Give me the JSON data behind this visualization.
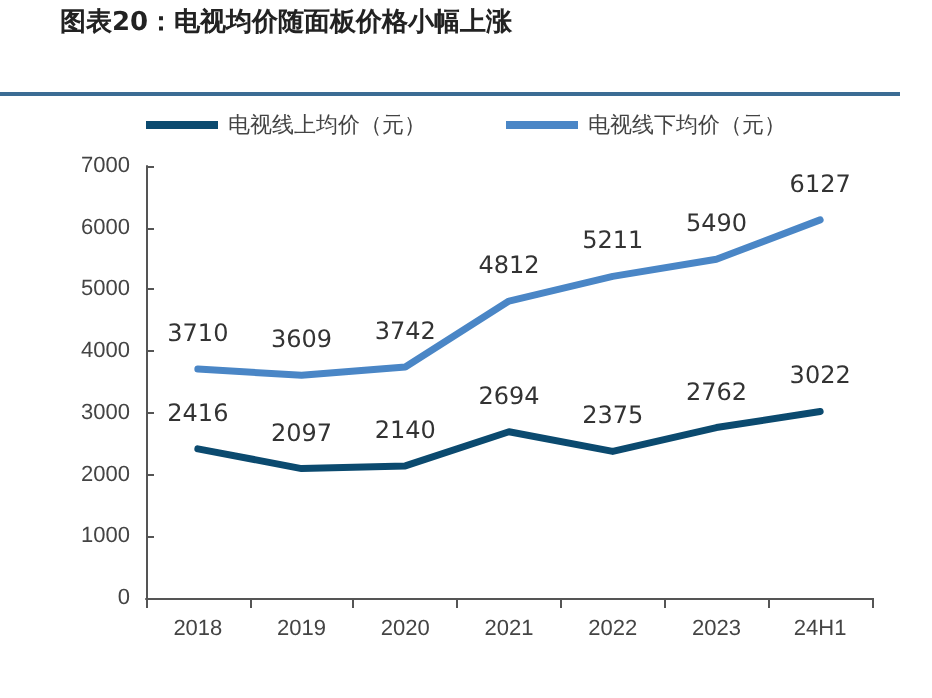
{
  "chart_data": {
    "type": "line",
    "title": "图表20：电视均价随面板价格小幅上涨",
    "categories": [
      "2018",
      "2019",
      "2020",
      "2021",
      "2022",
      "2023",
      "24H1"
    ],
    "series": [
      {
        "name": "电视线上均价（元）",
        "color": "#0b4a6f",
        "values": [
          2416,
          2097,
          2140,
          2694,
          2375,
          2762,
          3022
        ]
      },
      {
        "name": "电视线下均价（元）",
        "color": "#4a86c6",
        "values": [
          3710,
          3609,
          3742,
          4812,
          5211,
          5490,
          6127
        ]
      }
    ],
    "ylim": [
      0,
      7000
    ],
    "yticks": [
      0,
      1000,
      2000,
      3000,
      4000,
      5000,
      6000,
      7000
    ],
    "grid": false,
    "legend": "top",
    "data_labels": true,
    "marker": "none",
    "line_style": "solid"
  }
}
